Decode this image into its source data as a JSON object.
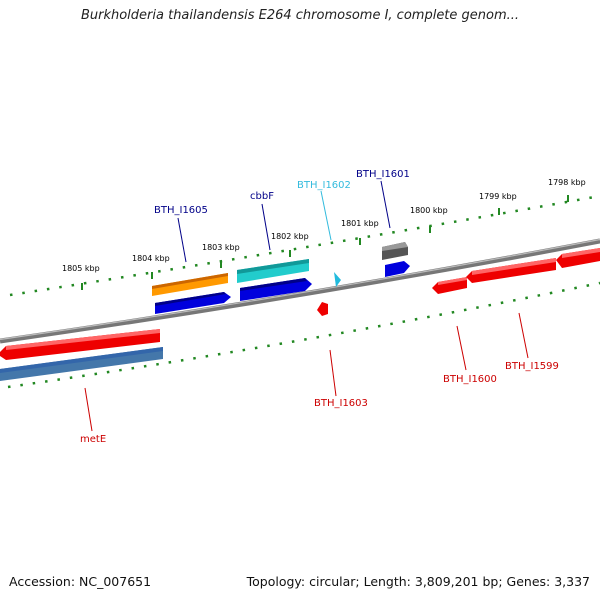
{
  "title": "Burkholderia thailandensis E264 chromosome I, complete genom...",
  "footer": {
    "accession": "Accession: NC_007651",
    "summary": "Topology: circular; Length: 3,809,201 bp; Genes: 3,337"
  },
  "ticks": [
    {
      "label": "1805 kbp"
    },
    {
      "label": "1804 kbp"
    },
    {
      "label": "1803 kbp"
    },
    {
      "label": "1802 kbp"
    },
    {
      "label": "1801 kbp"
    },
    {
      "label": "1800 kbp"
    },
    {
      "label": "1799 kbp"
    },
    {
      "label": "1798 kbp"
    }
  ],
  "genes": [
    {
      "name": "BTH_I1605",
      "color": "#000088"
    },
    {
      "name": "cbbF",
      "color": "#000088"
    },
    {
      "name": "BTH_I1602",
      "color": "#33bbdd"
    },
    {
      "name": "BTH_I1601",
      "color": "#000088"
    },
    {
      "name": "BTH_I1603",
      "color": "#cc0000"
    },
    {
      "name": "BTH_I1600",
      "color": "#cc0000"
    },
    {
      "name": "BTH_I1599",
      "color": "#cc0000"
    },
    {
      "name": "metE",
      "color": "#cc0000"
    }
  ],
  "colors": {
    "backbone": "#888888",
    "tick": "#228822",
    "forward": "#ee0000",
    "cds_blue": "#0000dd",
    "orange": "#ff9900",
    "cyan": "#22cccc",
    "steel": "#4477aa",
    "gray": "#555555"
  }
}
